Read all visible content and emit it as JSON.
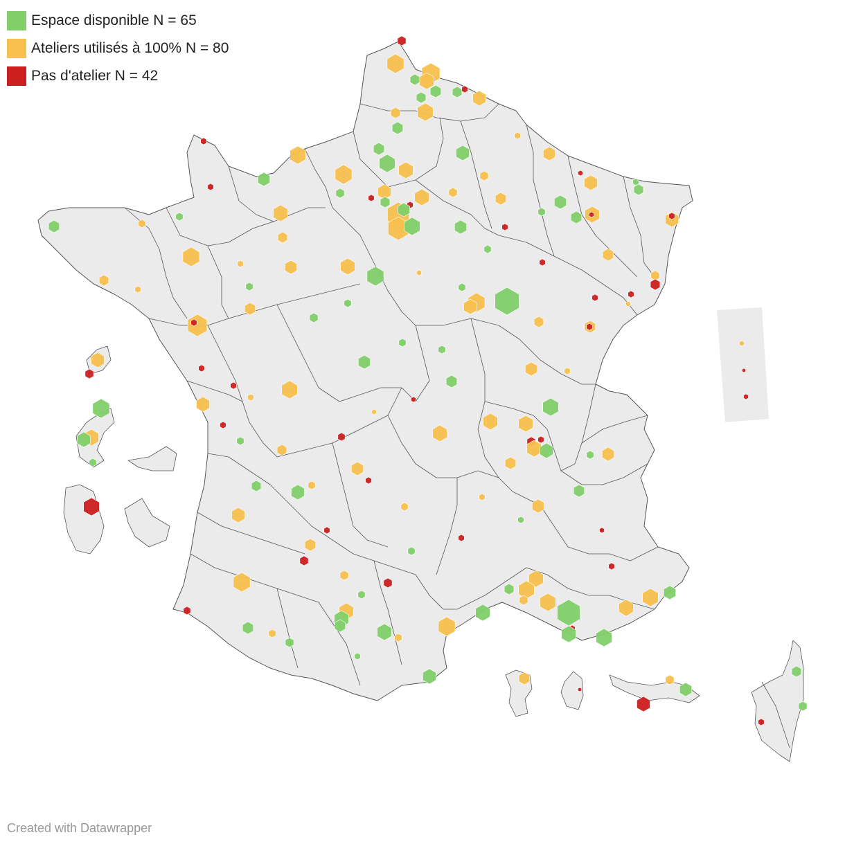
{
  "legend": {
    "items": [
      {
        "label": "Espace disponible N = 65",
        "color": "#82cf6a"
      },
      {
        "label": "Ateliers utilisés à 100% N = 80",
        "color": "#f8c04d"
      },
      {
        "label": "Pas d'atelier N = 42",
        "color": "#cc1f1f"
      }
    ]
  },
  "map": {
    "land_color": "#ebebeb",
    "border_color": "#555555",
    "region": "France",
    "category_colors": {
      "green": "#82cf6a",
      "orange": "#f8c04d",
      "red": "#cc1f1f"
    }
  },
  "footer": {
    "credit": "Created with Datawrapper"
  }
}
